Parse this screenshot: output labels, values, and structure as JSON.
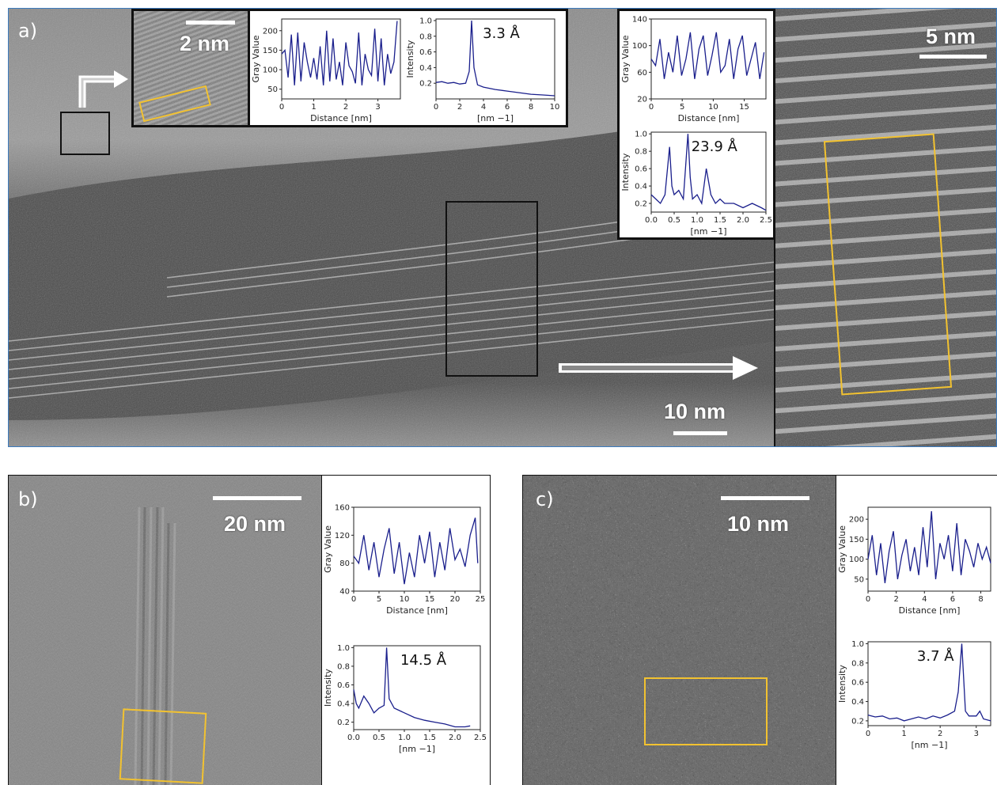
{
  "panel_a": {
    "label": "a)",
    "scalebar_main": "10 nm",
    "scalebar_inset_left": "2 nm",
    "scalebar_inset_right": "5 nm",
    "line_color": "#1a1f8c",
    "highlight_color": "#f2c230"
  },
  "panel_b": {
    "label": "b)",
    "scalebar": "20 nm"
  },
  "panel_c": {
    "label": "c)",
    "scalebar": "10 nm"
  },
  "chart_data": [
    {
      "id": "a1",
      "type": "line",
      "xlabel": "Distance [nm]",
      "ylabel": "Gray Value",
      "xlim": [
        0,
        3.7
      ],
      "ylim": [
        25,
        230
      ],
      "xticks": [
        0,
        1,
        2,
        3
      ],
      "yticks": [
        50,
        100,
        150,
        200
      ],
      "x": [
        0,
        0.1,
        0.2,
        0.3,
        0.4,
        0.5,
        0.6,
        0.7,
        0.8,
        0.9,
        1.0,
        1.1,
        1.2,
        1.3,
        1.4,
        1.5,
        1.6,
        1.7,
        1.8,
        1.9,
        2.0,
        2.1,
        2.2,
        2.3,
        2.4,
        2.5,
        2.6,
        2.7,
        2.8,
        2.9,
        3.0,
        3.1,
        3.2,
        3.3,
        3.4,
        3.5,
        3.6
      ],
      "y": [
        140,
        150,
        80,
        190,
        60,
        195,
        70,
        170,
        120,
        80,
        130,
        75,
        160,
        60,
        200,
        70,
        180,
        75,
        120,
        60,
        170,
        110,
        95,
        65,
        195,
        60,
        140,
        100,
        85,
        205,
        70,
        180,
        60,
        140,
        90,
        120,
        225
      ]
    },
    {
      "id": "a2",
      "type": "line",
      "xlabel": "[nm −1]",
      "ylabel": "Intensity",
      "annotation": "3.3 Å",
      "xlim": [
        0,
        10
      ],
      "ylim": [
        0,
        1.02
      ],
      "xticks": [
        0,
        2,
        4,
        6,
        8,
        10
      ],
      "yticks": [
        0.2,
        0.4,
        0.6,
        0.8,
        1.0
      ],
      "x": [
        0,
        0.5,
        1,
        1.5,
        2,
        2.5,
        2.8,
        3.0,
        3.2,
        3.5,
        4,
        5,
        6,
        7,
        8,
        9,
        10
      ],
      "y": [
        0.21,
        0.22,
        0.2,
        0.21,
        0.19,
        0.2,
        0.35,
        1.0,
        0.4,
        0.18,
        0.15,
        0.12,
        0.1,
        0.08,
        0.06,
        0.05,
        0.04
      ]
    },
    {
      "id": "a3",
      "type": "line",
      "xlabel": "Distance [nm]",
      "ylabel": "Gray Value",
      "xlim": [
        0,
        18.5
      ],
      "ylim": [
        20,
        140
      ],
      "xticks": [
        0,
        5,
        10,
        15
      ],
      "yticks": [
        20,
        60,
        100,
        140
      ],
      "x": [
        0,
        0.7,
        1.4,
        2.1,
        2.8,
        3.5,
        4.2,
        4.9,
        5.6,
        6.3,
        7.0,
        7.7,
        8.4,
        9.1,
        9.8,
        10.5,
        11.2,
        11.9,
        12.6,
        13.3,
        14.0,
        14.7,
        15.4,
        16.1,
        16.8,
        17.5,
        18.2
      ],
      "y": [
        80,
        70,
        110,
        50,
        90,
        60,
        115,
        55,
        80,
        120,
        50,
        95,
        115,
        55,
        85,
        120,
        60,
        70,
        110,
        50,
        95,
        115,
        55,
        80,
        105,
        50,
        90
      ]
    },
    {
      "id": "a4",
      "type": "line",
      "xlabel": "[nm −1]",
      "ylabel": "Intensity",
      "annotation": "23.9 Å",
      "xlim": [
        0,
        2.5
      ],
      "ylim": [
        0.1,
        1.02
      ],
      "xticks": [
        0.0,
        0.5,
        1.0,
        1.5,
        2.0,
        2.5
      ],
      "yticks": [
        0.2,
        0.4,
        0.6,
        0.8,
        1.0
      ],
      "x": [
        0,
        0.1,
        0.2,
        0.3,
        0.4,
        0.45,
        0.5,
        0.6,
        0.7,
        0.8,
        0.85,
        0.9,
        1.0,
        1.1,
        1.2,
        1.3,
        1.4,
        1.5,
        1.6,
        1.8,
        2.0,
        2.2,
        2.4,
        2.5
      ],
      "y": [
        0.3,
        0.25,
        0.2,
        0.3,
        0.85,
        0.4,
        0.3,
        0.35,
        0.25,
        1.0,
        0.5,
        0.25,
        0.3,
        0.2,
        0.6,
        0.3,
        0.2,
        0.25,
        0.2,
        0.2,
        0.15,
        0.2,
        0.15,
        0.12
      ]
    },
    {
      "id": "b1",
      "type": "line",
      "xlabel": "Distance [nm]",
      "ylabel": "Gray Value",
      "xlim": [
        0,
        25
      ],
      "ylim": [
        40,
        160
      ],
      "xticks": [
        0,
        5,
        10,
        15,
        20,
        25
      ],
      "yticks": [
        40,
        80,
        120,
        160
      ],
      "x": [
        0,
        1,
        2,
        3,
        4,
        5,
        6,
        7,
        8,
        9,
        10,
        11,
        12,
        13,
        14,
        15,
        16,
        17,
        18,
        19,
        20,
        21,
        22,
        23,
        24,
        24.5
      ],
      "y": [
        90,
        80,
        120,
        70,
        110,
        60,
        100,
        130,
        65,
        110,
        50,
        95,
        60,
        120,
        80,
        125,
        60,
        110,
        70,
        130,
        85,
        100,
        75,
        120,
        145,
        80
      ]
    },
    {
      "id": "b2",
      "type": "line",
      "xlabel": "[nm −1]",
      "ylabel": "Intensity",
      "annotation": "14.5 Å",
      "xlim": [
        0,
        2.5
      ],
      "ylim": [
        0.12,
        1.02
      ],
      "xticks": [
        0.0,
        0.5,
        1.0,
        1.5,
        2.0,
        2.5
      ],
      "yticks": [
        0.2,
        0.4,
        0.6,
        0.8,
        1.0
      ],
      "x": [
        0,
        0.05,
        0.1,
        0.2,
        0.3,
        0.4,
        0.5,
        0.6,
        0.65,
        0.7,
        0.8,
        1.0,
        1.2,
        1.4,
        1.6,
        1.8,
        2.0,
        2.2,
        2.3
      ],
      "y": [
        0.55,
        0.4,
        0.35,
        0.48,
        0.4,
        0.3,
        0.35,
        0.38,
        1.0,
        0.45,
        0.35,
        0.3,
        0.25,
        0.22,
        0.2,
        0.18,
        0.15,
        0.15,
        0.16
      ]
    },
    {
      "id": "c1",
      "type": "line",
      "xlabel": "Distance [nm]",
      "ylabel": "Gray Value",
      "xlim": [
        0,
        8.7
      ],
      "ylim": [
        20,
        230
      ],
      "xticks": [
        0,
        2,
        4,
        6,
        8
      ],
      "yticks": [
        50,
        100,
        150,
        200
      ],
      "x": [
        0,
        0.3,
        0.6,
        0.9,
        1.2,
        1.5,
        1.8,
        2.1,
        2.4,
        2.7,
        3.0,
        3.3,
        3.6,
        3.9,
        4.2,
        4.5,
        4.8,
        5.1,
        5.4,
        5.7,
        6.0,
        6.3,
        6.6,
        6.9,
        7.2,
        7.5,
        7.8,
        8.1,
        8.4,
        8.7
      ],
      "y": [
        100,
        160,
        60,
        140,
        40,
        120,
        170,
        50,
        110,
        150,
        70,
        130,
        60,
        180,
        80,
        220,
        50,
        140,
        100,
        160,
        70,
        190,
        60,
        150,
        120,
        80,
        140,
        100,
        130,
        90
      ]
    },
    {
      "id": "c2",
      "type": "line",
      "xlabel": "[nm −1]",
      "ylabel": "Intensity",
      "annotation": "3.7 Å",
      "xlim": [
        0,
        3.4
      ],
      "ylim": [
        0.15,
        1.02
      ],
      "xticks": [
        0,
        1,
        2,
        3
      ],
      "yticks": [
        0.2,
        0.4,
        0.6,
        0.8,
        1.0
      ],
      "x": [
        0,
        0.2,
        0.4,
        0.6,
        0.8,
        1.0,
        1.2,
        1.4,
        1.6,
        1.8,
        2.0,
        2.2,
        2.4,
        2.5,
        2.6,
        2.7,
        2.8,
        3.0,
        3.1,
        3.2,
        3.4
      ],
      "y": [
        0.26,
        0.24,
        0.25,
        0.22,
        0.23,
        0.2,
        0.22,
        0.24,
        0.22,
        0.25,
        0.23,
        0.26,
        0.3,
        0.5,
        1.0,
        0.3,
        0.25,
        0.25,
        0.3,
        0.22,
        0.2
      ]
    }
  ]
}
